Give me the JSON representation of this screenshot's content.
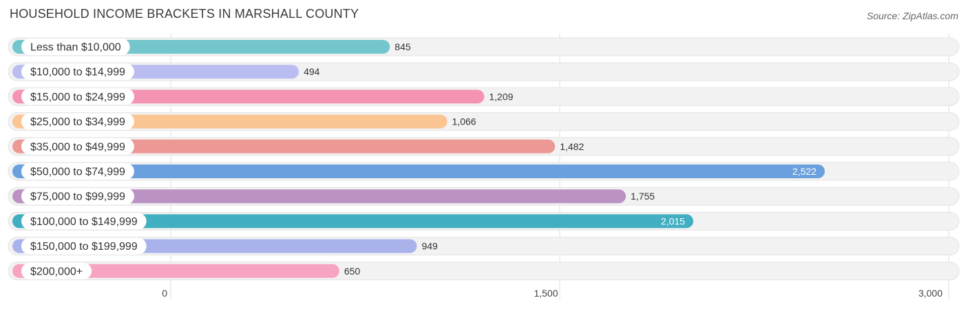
{
  "header": {
    "title": "HOUSEHOLD INCOME BRACKETS IN MARSHALL COUNTY",
    "source": "Source: ZipAtlas.com"
  },
  "chart_data": {
    "type": "bar",
    "orientation": "horizontal",
    "title": "HOUSEHOLD INCOME BRACKETS IN MARSHALL COUNTY",
    "xlabel": "",
    "ylabel": "",
    "xlim": [
      0,
      3000
    ],
    "ticks": [
      0,
      1500,
      3000
    ],
    "tick_labels": [
      "0",
      "1,500",
      "3,000"
    ],
    "grid": true,
    "categories": [
      "Less than $10,000",
      "$10,000 to $14,999",
      "$15,000 to $24,999",
      "$25,000 to $34,999",
      "$35,000 to $49,999",
      "$50,000 to $74,999",
      "$75,000 to $99,999",
      "$100,000 to $149,999",
      "$150,000 to $199,999",
      "$200,000+"
    ],
    "values": [
      845,
      494,
      1209,
      1066,
      1482,
      2522,
      1755,
      2015,
      949,
      650
    ],
    "value_labels": [
      "845",
      "494",
      "1,209",
      "1,066",
      "1,482",
      "2,522",
      "1,755",
      "2,015",
      "949",
      "650"
    ],
    "colors": [
      "#72c6cc",
      "#b9bdf0",
      "#f594b2",
      "#fac592",
      "#ec9996",
      "#6aa0dd",
      "#bb93c3",
      "#42aec1",
      "#aab2ec",
      "#f7a4c3"
    ],
    "value_label_inside": [
      false,
      false,
      false,
      false,
      false,
      true,
      false,
      true,
      false,
      false
    ]
  }
}
